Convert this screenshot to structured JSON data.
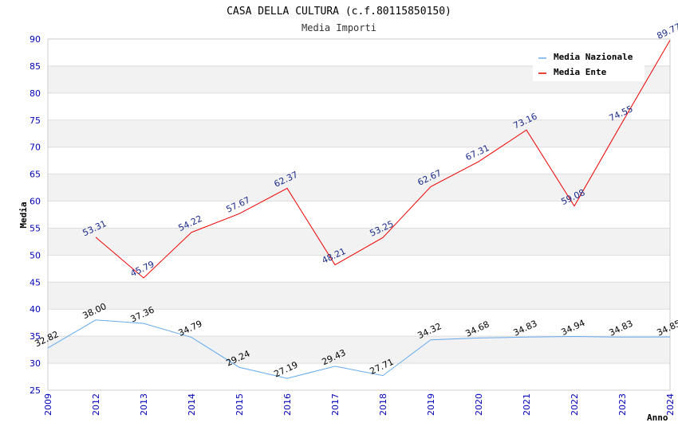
{
  "colors": {
    "axis_tick": "#0000bb",
    "national": "#66aaee",
    "ente": "#ee0000",
    "ente_label": "#1a2a8a",
    "national_label": "#000000",
    "band": "#f2f2f2",
    "grid": "#dddddd"
  },
  "chart_data": {
    "type": "line",
    "title": "CASA DELLA CULTURA (c.f.80115850150)",
    "subtitle": "Media Importi",
    "xlabel": "Anno",
    "ylabel": "Media",
    "ylim": [
      25,
      90
    ],
    "yticks": [
      "25",
      "30",
      "35",
      "40",
      "45",
      "50",
      "55",
      "60",
      "65",
      "70",
      "75",
      "80",
      "85",
      "90"
    ],
    "categories": [
      "2009",
      "2012",
      "2013",
      "2014",
      "2015",
      "2016",
      "2017",
      "2018",
      "2019",
      "2020",
      "2021",
      "2022",
      "2023",
      "2024"
    ],
    "legend_position": "top-right",
    "series": [
      {
        "name": "Media Nazionale",
        "color": "#66aaee",
        "values": [
          32.82,
          38.0,
          37.36,
          34.79,
          29.24,
          27.19,
          29.43,
          27.71,
          34.32,
          34.68,
          34.83,
          34.94,
          34.83,
          34.85
        ],
        "labels": [
          "32.82",
          "38.00",
          "37.36",
          "34.79",
          "29.24",
          "27.19",
          "29.43",
          "27.71",
          "34.32",
          "34.68",
          "34.83",
          "34.94",
          "34.83",
          "34.85"
        ]
      },
      {
        "name": "Media Ente",
        "color": "#ee0000",
        "values": [
          null,
          53.31,
          45.79,
          54.22,
          57.67,
          62.37,
          48.21,
          53.25,
          62.67,
          67.31,
          73.16,
          59.08,
          74.55,
          89.77
        ],
        "labels": [
          null,
          "53.31",
          "45.79",
          "54.22",
          "57.67",
          "62.37",
          "48.21",
          "53.25",
          "62.67",
          "67.31",
          "73.16",
          "59.08",
          "74.55",
          "89.77"
        ]
      }
    ]
  }
}
